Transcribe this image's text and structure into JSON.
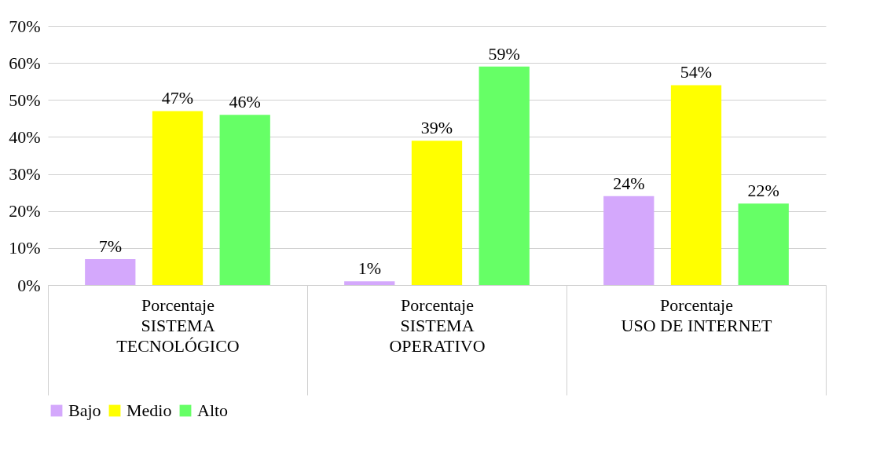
{
  "chart_data": {
    "type": "bar",
    "categories": [
      "SISTEMA TECNOLÓGICO",
      "SISTEMA OPERATIVO",
      "USO DE INTERNET"
    ],
    "annotations": [
      "Porcentaje",
      "Porcentaje",
      "Porcentaje"
    ],
    "series": [
      {
        "name": "Bajo",
        "color": "#d4a8fc",
        "values": [
          7,
          1,
          24
        ],
        "value_labels": [
          "7%",
          "1%",
          "24%"
        ]
      },
      {
        "name": "Medio",
        "color": "#ffff00",
        "values": [
          47,
          39,
          54
        ],
        "value_labels": [
          "47%",
          "39%",
          "54%"
        ]
      },
      {
        "name": "Alto",
        "color": "#66ff66",
        "values": [
          46,
          59,
          22
        ],
        "value_labels": [
          "46%",
          "59%",
          "22%"
        ]
      }
    ],
    "ylim": [
      0,
      70
    ],
    "yticks": [
      {
        "value": 0,
        "label": "0%"
      },
      {
        "value": 10,
        "label": "10%"
      },
      {
        "value": 20,
        "label": "20%"
      },
      {
        "value": 30,
        "label": "30%"
      },
      {
        "value": 40,
        "label": "40%"
      },
      {
        "value": 50,
        "label": "50%"
      },
      {
        "value": 60,
        "label": "60%"
      },
      {
        "value": 70,
        "label": "70%"
      }
    ],
    "grid": "y",
    "legend": "bottom"
  }
}
